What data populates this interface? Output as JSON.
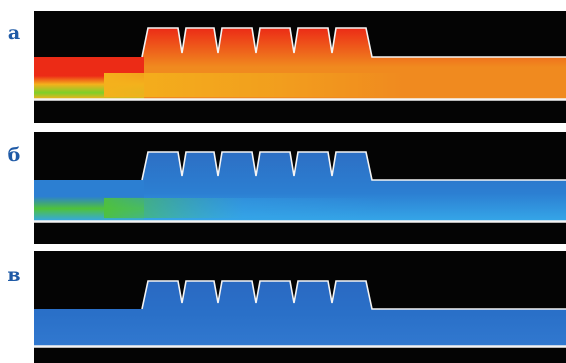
{
  "panels": [
    {
      "id": "a",
      "label": "а",
      "colors": {
        "background": "#040404",
        "slab": "#f08a1f",
        "hot": "#ec2b16",
        "warm": "#f4b11c",
        "cool": "#7ecf2a",
        "edge": "#f4f4f4"
      }
    },
    {
      "id": "b",
      "label": "б",
      "colors": {
        "background": "#040404",
        "slab": "#2c7fd2",
        "hot": "#2d6fc4",
        "warm": "#35a6e8",
        "cool": "#4fc23a",
        "edge": "#f4f4f4"
      }
    },
    {
      "id": "c",
      "label": "в",
      "colors": {
        "background": "#040404",
        "slab": "#2a70c8",
        "hot": "#2a69c2",
        "warm": "#3178cf",
        "cool": "#2f74cb",
        "edge": "#f4f4f4"
      }
    }
  ]
}
